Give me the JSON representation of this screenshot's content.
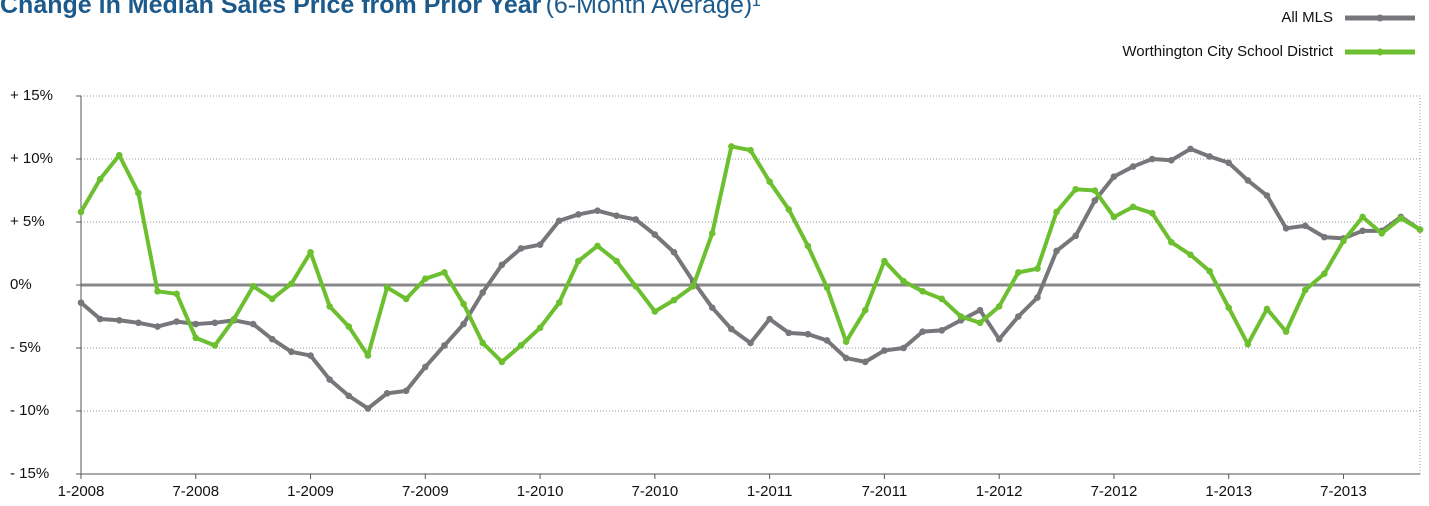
{
  "chart_data": {
    "type": "line",
    "title": "Change in Median Sales Price from Prior Year",
    "subtitle": "(6-Month Average)¹",
    "categories": [
      "1-2008",
      null,
      null,
      null,
      null,
      null,
      "7-2008",
      null,
      null,
      null,
      null,
      null,
      "1-2009",
      null,
      null,
      null,
      null,
      null,
      "7-2009",
      null,
      null,
      null,
      null,
      null,
      "1-2010",
      null,
      null,
      null,
      null,
      null,
      "7-2010",
      null,
      null,
      null,
      null,
      null,
      "1-2011",
      null,
      null,
      null,
      null,
      null,
      "7-2011",
      null,
      null,
      null,
      null,
      null,
      "1-2012",
      null,
      null,
      null,
      null,
      null,
      "7-2012",
      null,
      null,
      null,
      null,
      null,
      "1-2013",
      null,
      null,
      null,
      null,
      null,
      "7-2013",
      null,
      null,
      null,
      null
    ],
    "series": [
      {
        "name": "All MLS",
        "color": "#77777b",
        "values": [
          -1.4,
          -2.7,
          -2.8,
          -3.0,
          -3.3,
          -2.9,
          -3.1,
          -3.0,
          -2.8,
          -3.1,
          -4.3,
          -5.3,
          -5.6,
          -7.5,
          -8.8,
          -9.8,
          -8.6,
          -8.4,
          -6.5,
          -4.8,
          -3.1,
          -0.6,
          1.6,
          2.9,
          3.2,
          5.1,
          5.6,
          5.9,
          5.5,
          5.2,
          4.0,
          2.6,
          0.3,
          -1.8,
          -3.5,
          -4.6,
          -2.7,
          -3.8,
          -3.9,
          -4.4,
          -5.8,
          -6.1,
          -5.2,
          -5.0,
          -3.7,
          -3.6,
          -2.8,
          -2.0,
          -4.3,
          -2.5,
          -1.0,
          2.7,
          3.9,
          6.7,
          8.6,
          9.4,
          10.0,
          9.9,
          10.8,
          10.2,
          9.7,
          8.3,
          7.1,
          4.5,
          4.7,
          3.8,
          3.7,
          4.3,
          4.3,
          5.4,
          4.4
        ]
      },
      {
        "name": "Worthington City School District",
        "color": "#6cbf2e",
        "values": [
          5.8,
          8.4,
          10.3,
          7.3,
          -0.5,
          -0.7,
          -4.2,
          -4.8,
          -2.7,
          -0.1,
          -1.1,
          0.1,
          2.6,
          -1.7,
          -3.3,
          -5.6,
          -0.2,
          -1.1,
          0.5,
          1.0,
          -1.5,
          -4.6,
          -6.1,
          -4.8,
          -3.4,
          -1.4,
          1.9,
          3.1,
          1.9,
          -0.1,
          -2.1,
          -1.2,
          -0.1,
          4.1,
          11.0,
          10.7,
          8.2,
          6.0,
          3.1,
          -0.2,
          -4.5,
          -2.0,
          1.9,
          0.3,
          -0.5,
          -1.1,
          -2.5,
          -3.0,
          -1.7,
          1.0,
          1.3,
          5.8,
          7.6,
          7.5,
          5.4,
          6.2,
          5.7,
          3.4,
          2.4,
          1.1,
          -1.8,
          -4.7,
          -1.9,
          -3.7,
          -0.4,
          0.9,
          3.5,
          5.4,
          4.1,
          5.3,
          4.4
        ]
      }
    ],
    "ylim": [
      -15,
      15
    ],
    "yticks": [
      {
        "value": -15,
        "label": "- 15%"
      },
      {
        "value": -10,
        "label": "- 10%"
      },
      {
        "value": -5,
        "label": "- 5%"
      },
      {
        "value": 0,
        "label": "0%"
      },
      {
        "value": 5,
        "label": "+ 5%"
      },
      {
        "value": 10,
        "label": "+ 10%"
      },
      {
        "value": 15,
        "label": "+ 15%"
      }
    ],
    "grid": true,
    "legend": "top-right"
  }
}
